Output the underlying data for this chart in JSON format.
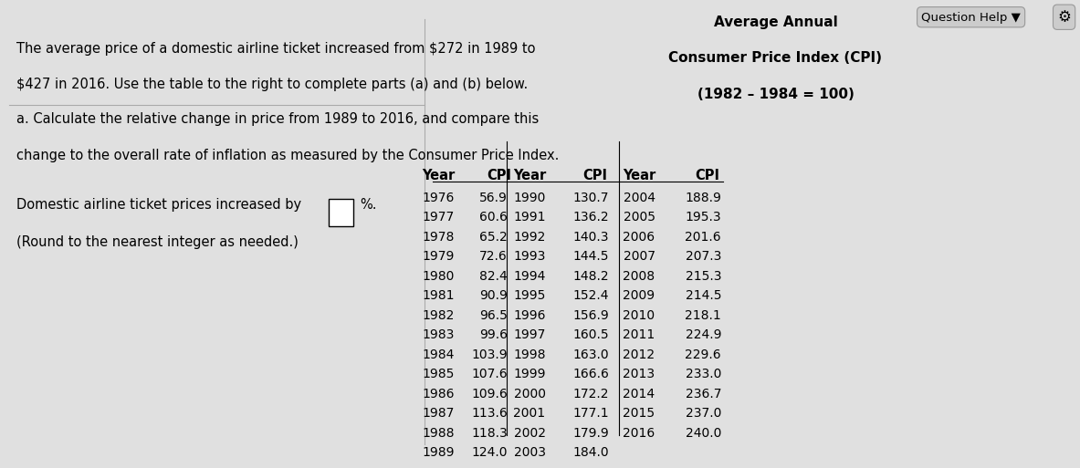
{
  "title_line1": "Average Annual",
  "title_line2": "Consumer Price Index (CPI)",
  "title_line3": "(1982 – 1984 = 100)",
  "left_text_line1": "The average price of a domestic airline ticket increased from $272 in 1989 to",
  "left_text_line2": "$427 in 2016. Use the table to the right to complete parts (a) and (b) below.",
  "part_a_line1": "a. Calculate the relative change in price from 1989 to 2016, and compare this",
  "part_a_line2": "change to the overall rate of inflation as measured by the Consumer Price Index.",
  "answer_line": "Domestic airline ticket prices increased by",
  "answer_suffix": "%.",
  "round_note": "(Round to the nearest integer as needed.)",
  "col1_years": [
    1976,
    1977,
    1978,
    1979,
    1980,
    1981,
    1982,
    1983,
    1984,
    1985,
    1986,
    1987,
    1988,
    1989
  ],
  "col1_cpi": [
    "56.9",
    "60.6",
    "65.2",
    "72.6",
    "82.4",
    "90.9",
    "96.5",
    "99.6",
    "103.9",
    "107.6",
    "109.6",
    "113.6",
    "118.3",
    "124.0"
  ],
  "col2_years": [
    1990,
    1991,
    1992,
    1993,
    1994,
    1995,
    1996,
    1997,
    1998,
    1999,
    2000,
    2001,
    2002,
    2003
  ],
  "col2_cpi": [
    "130.7",
    "136.2",
    "140.3",
    "144.5",
    "148.2",
    "152.4",
    "156.9",
    "160.5",
    "163.0",
    "166.6",
    "172.2",
    "177.1",
    "179.9",
    "184.0"
  ],
  "col3_years": [
    2004,
    2005,
    2006,
    2007,
    2008,
    2009,
    2010,
    2011,
    2012,
    2013,
    2014,
    2015,
    2016
  ],
  "col3_cpi": [
    "188.9",
    "195.3",
    "201.6",
    "207.3",
    "215.3",
    "214.5",
    "218.1",
    "224.9",
    "229.6",
    "233.0",
    "236.7",
    "237.0",
    "240.0"
  ],
  "bg_color": "#e0e0e0",
  "question_help_text": "Question Help",
  "font_size_text": 10.5,
  "font_size_table_data": 10.0,
  "font_size_table_header": 10.5,
  "font_size_title": 11.0
}
